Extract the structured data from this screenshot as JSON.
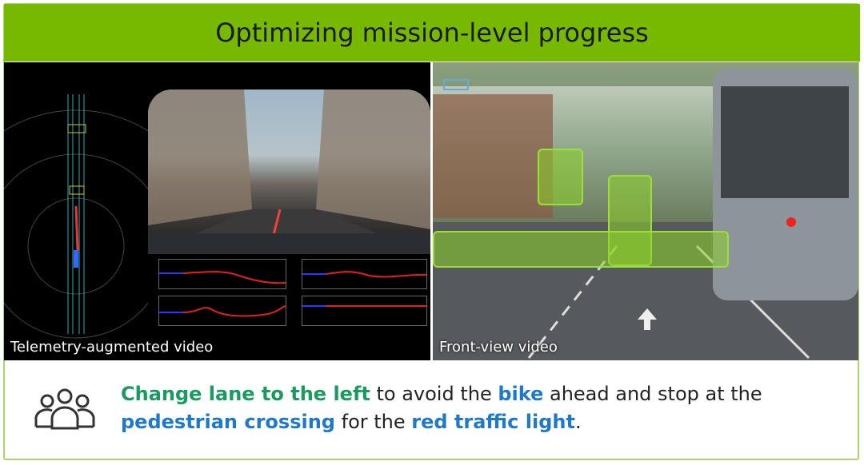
{
  "header": {
    "title": "Optimizing mission-level progress"
  },
  "left_panel": {
    "caption": "Telemetry-augmented video"
  },
  "right_panel": {
    "caption": "Front-view video"
  },
  "message": {
    "parts": [
      {
        "text": "Change lane to the left",
        "style": "green"
      },
      {
        "text": " to avoid the ",
        "style": "plain"
      },
      {
        "text": "bike",
        "style": "blue"
      },
      {
        "text": " ahead and stop at the ",
        "style": "plain"
      },
      {
        "text": "pedestrian crossing",
        "style": "blue"
      },
      {
        "text": " for the ",
        "style": "plain"
      },
      {
        "text": "red traffic light",
        "style": "blue"
      },
      {
        "text": ".",
        "style": "plain"
      }
    ],
    "icon": "people-group-icon"
  },
  "colors": {
    "header_bg": "#76b900",
    "highlight_green": "#1a9a5e",
    "highlight_blue": "#1f78c8"
  }
}
